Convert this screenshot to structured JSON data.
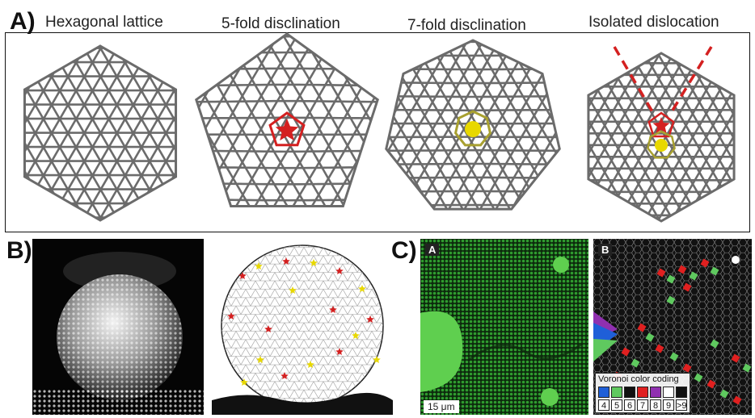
{
  "panel_a": {
    "letter": "A)",
    "captions": [
      "Hexagonal lattice",
      "5-fold disclination",
      "7-fold disclination",
      "Isolated dislocation"
    ]
  },
  "panel_b": {
    "letter": "B)"
  },
  "panel_c": {
    "letter": "C)",
    "sub_a": "A",
    "sub_b": "B",
    "scale": "15 μm",
    "legend_title": "Voronoi color coding",
    "legend_numbers": [
      "4",
      "5",
      "6",
      "7",
      "8",
      "9",
      ">9"
    ],
    "legend_colors": [
      "#1f5fd8",
      "#5fc95f",
      "#111111",
      "#e02020",
      "#9030b0",
      "#ffffff",
      "#111111"
    ]
  },
  "colors": {
    "lattice": "#6b6b6b",
    "fivefold": "#d42020",
    "sevenfold": "#e8d800",
    "sevenfold_ring": "#a8a030",
    "dislocation_line": "#d42020",
    "micro_bg": "#0d2a0d",
    "micro_particle": "#3fbf3f"
  }
}
